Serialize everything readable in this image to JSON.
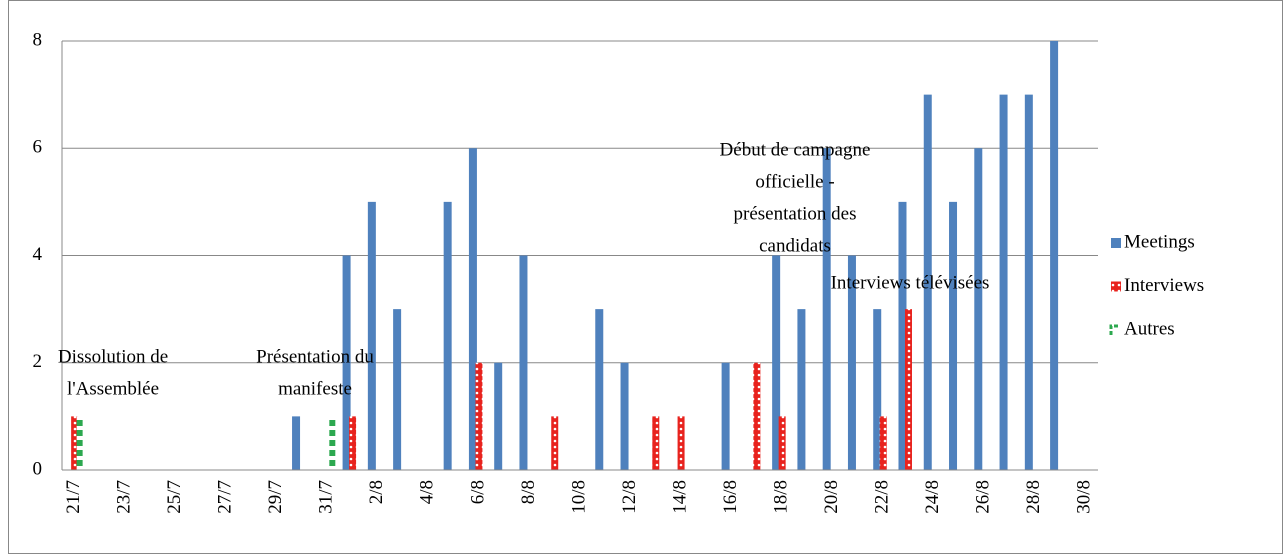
{
  "chart_data": {
    "type": "bar",
    "categories": [
      "21/7",
      null,
      "23/7",
      null,
      "25/7",
      null,
      "27/7",
      null,
      "29/7",
      null,
      "31/7",
      null,
      "2/8",
      null,
      "4/8",
      null,
      "6/8",
      null,
      "8/8",
      null,
      "10/8",
      null,
      "12/8",
      null,
      "14/8",
      null,
      "16/8",
      null,
      "18/8",
      null,
      "20/8",
      null,
      "22/8",
      null,
      "24/8",
      null,
      "26/8",
      null,
      "28/8",
      null,
      "30/8"
    ],
    "series": [
      {
        "name": "Meetings",
        "color": "#4f81bd",
        "values": [
          0,
          0,
          0,
          0,
          0,
          0,
          0,
          0,
          0,
          1,
          0,
          4,
          5,
          3,
          0,
          5,
          6,
          2,
          4,
          0,
          0,
          3,
          2,
          0,
          0,
          0,
          2,
          0,
          4,
          3,
          6,
          4,
          3,
          5,
          7,
          5,
          6,
          7,
          7,
          8,
          0
        ]
      },
      {
        "name": "Interviews",
        "color": "#e8231e",
        "values": [
          1,
          0,
          0,
          0,
          0,
          0,
          0,
          0,
          0,
          0,
          0,
          1,
          0,
          0,
          0,
          0,
          2,
          0,
          0,
          1,
          0,
          0,
          0,
          1,
          1,
          0,
          0,
          2,
          1,
          0,
          0,
          0,
          1,
          3,
          0,
          0,
          0,
          0,
          0,
          0,
          0
        ]
      },
      {
        "name": "Autres",
        "color": "#2ca84f",
        "values": [
          1,
          0,
          0,
          0,
          0,
          0,
          0,
          0,
          0,
          0,
          1,
          0,
          0,
          0,
          0,
          0,
          0,
          0,
          0,
          0,
          0,
          0,
          0,
          0,
          0,
          0,
          0,
          0,
          0,
          0,
          0,
          0,
          0,
          0,
          0,
          0,
          0,
          0,
          0,
          0,
          0
        ]
      }
    ],
    "annotations": [
      {
        "lines": [
          "Dissolution de",
          "l'Assemblée"
        ]
      },
      {
        "lines": [
          "Présentation du",
          "manifeste"
        ]
      },
      {
        "lines": [
          "Début de campagne",
          "officielle -",
          "présentation des",
          "candidats"
        ]
      },
      {
        "lines": [
          "Interviews télévisées"
        ]
      }
    ],
    "ylim": [
      0,
      8
    ],
    "yticks": [
      0,
      2,
      4,
      6,
      8
    ],
    "grid": true,
    "legend": "right"
  }
}
